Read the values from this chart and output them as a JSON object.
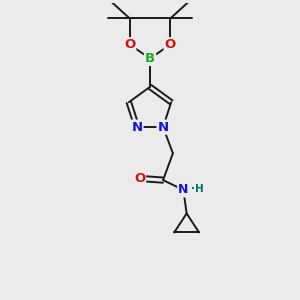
{
  "bg_color": "#ebebeb",
  "bond_color": "#1a1a1a",
  "bond_width": 1.4,
  "N_color": "#1414cc",
  "O_color": "#cc1414",
  "B_color": "#22aa22",
  "H_color": "#007070",
  "font_size_atom": 8.5,
  "fig_width": 3.0,
  "fig_height": 3.0,
  "dpi": 100,
  "xlim": [
    0,
    6
  ],
  "ylim": [
    0,
    9
  ]
}
